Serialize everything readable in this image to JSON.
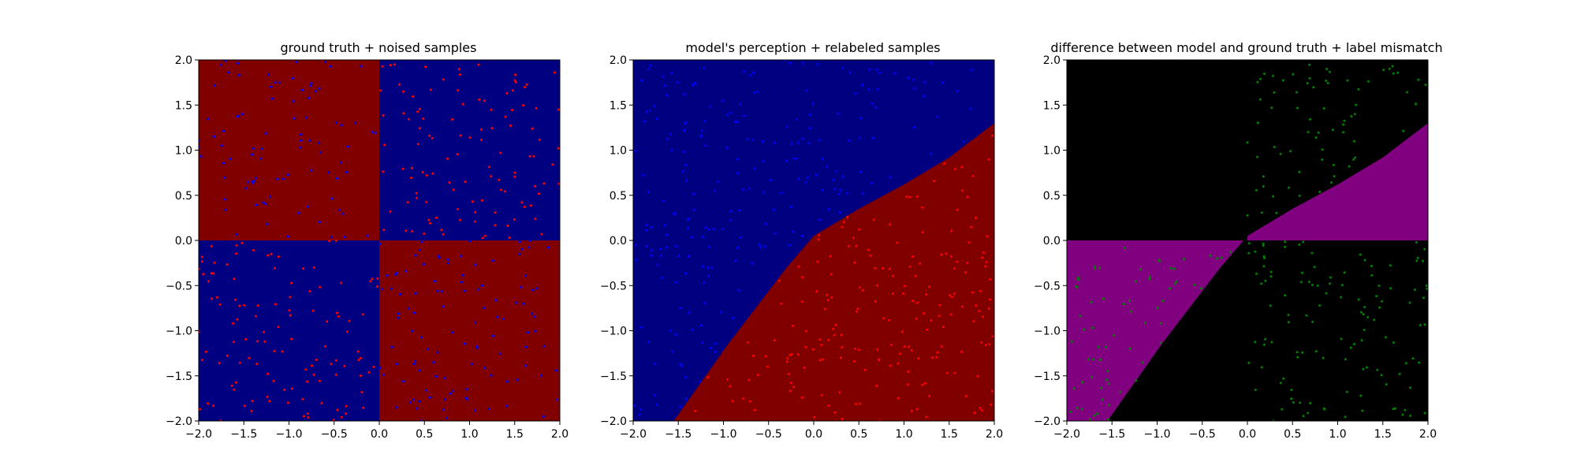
{
  "chart_data": [
    {
      "type": "heatmap",
      "title": "ground truth + noised samples",
      "xlabel": "",
      "ylabel": "",
      "xlim": [
        -2.0,
        2.0
      ],
      "ylim": [
        -2.0,
        2.0
      ],
      "x_ticks": [
        "−2.0",
        "−1.5",
        "−1.0",
        "−0.5",
        "0.0",
        "0.5",
        "1.0",
        "1.5",
        "2.0"
      ],
      "y_ticks": [
        "−2.0",
        "−1.5",
        "−1.0",
        "−0.5",
        "0.0",
        "0.5",
        "1.0",
        "1.5",
        "2.0"
      ],
      "regions": [
        {
          "x": [
            -2.0,
            0.0
          ],
          "y": [
            0.0,
            2.0
          ],
          "color": "#800000"
        },
        {
          "x": [
            0.0,
            2.0
          ],
          "y": [
            0.0,
            2.0
          ],
          "color": "#000080"
        },
        {
          "x": [
            -2.0,
            0.0
          ],
          "y": [
            -2.0,
            0.0
          ],
          "color": "#000080"
        },
        {
          "x": [
            0.0,
            2.0
          ],
          "y": [
            -2.0,
            0.0
          ],
          "color": "#800000"
        }
      ],
      "series": [
        {
          "color": "#ff0000",
          "samples": "scattered over the top-right and bottom-left quadrants"
        },
        {
          "color": "#0000ff",
          "samples": "scattered over the top-left and bottom-right quadrants"
        }
      ]
    },
    {
      "type": "heatmap",
      "title": "model's perception + relabeled samples",
      "xlabel": "",
      "ylabel": "",
      "xlim": [
        -2.0,
        2.0
      ],
      "ylim": [
        -2.0,
        2.0
      ],
      "x_ticks": [
        "−2.0",
        "−1.5",
        "−1.0",
        "−0.5",
        "0.0",
        "0.5",
        "1.0",
        "1.5",
        "2.0"
      ],
      "y_ticks": [
        "−2.0",
        "−1.5",
        "−1.0",
        "−0.5",
        "0.0",
        "0.5",
        "1.0",
        "1.5",
        "2.0"
      ],
      "background_color": "#000080",
      "boundary": [
        [
          -1.55,
          -2.0
        ],
        [
          -0.95,
          -1.15
        ],
        [
          -0.3,
          -0.3
        ],
        [
          0.0,
          0.05
        ],
        [
          0.5,
          0.35
        ],
        [
          1.0,
          0.62
        ],
        [
          1.5,
          0.92
        ],
        [
          2.0,
          1.3
        ]
      ],
      "region_below_boundary_color": "#800000",
      "series": [
        {
          "color": "#0000ff",
          "samples": "above the boundary"
        },
        {
          "color": "#ff0000",
          "samples": "below the boundary"
        }
      ]
    },
    {
      "type": "heatmap",
      "title": "difference between model and ground truth + label mismatch",
      "xlabel": "",
      "ylabel": "",
      "xlim": [
        -2.0,
        2.0
      ],
      "ylim": [
        -2.0,
        2.0
      ],
      "x_ticks": [
        "−2.0",
        "−1.5",
        "−1.0",
        "−0.5",
        "0.0",
        "0.5",
        "1.0",
        "1.5",
        "2.0"
      ],
      "y_ticks": [
        "−2.0",
        "−1.5",
        "−1.0",
        "−0.5",
        "0.0",
        "0.5",
        "1.0",
        "1.5",
        "2.0"
      ],
      "background_color": "#000000",
      "mismatch_color": "#800080",
      "boundary": [
        [
          -1.55,
          -2.0
        ],
        [
          -0.95,
          -1.15
        ],
        [
          -0.3,
          -0.3
        ],
        [
          0.0,
          0.05
        ],
        [
          0.5,
          0.35
        ],
        [
          1.0,
          0.62
        ],
        [
          1.5,
          0.92
        ],
        [
          2.0,
          1.3
        ]
      ],
      "series": [
        {
          "color": "#008000",
          "samples": "label mismatches inside the purple regions"
        }
      ]
    }
  ]
}
